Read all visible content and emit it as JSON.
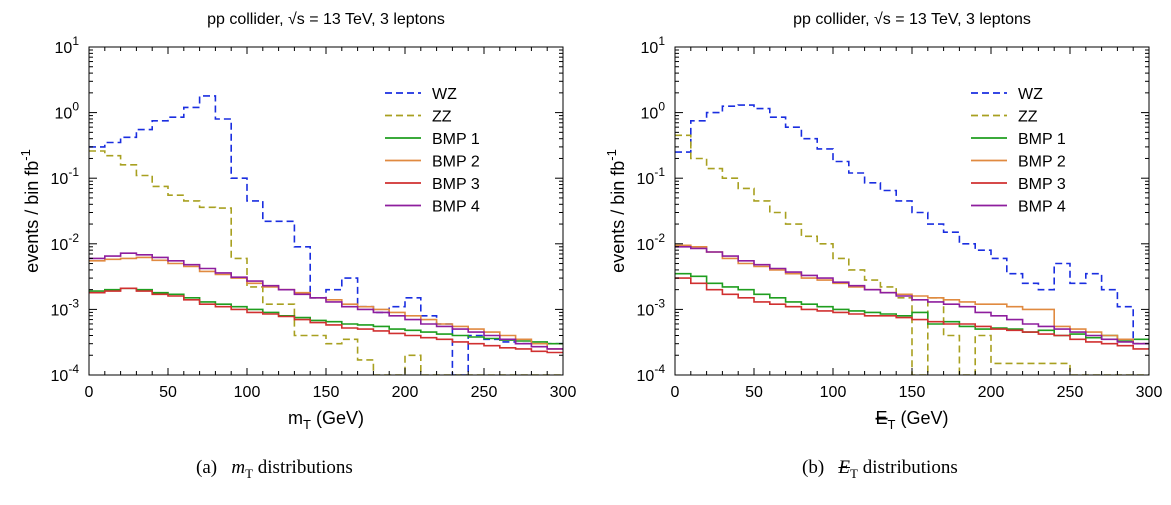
{
  "chart_data": [
    {
      "type": "line",
      "panel": "a",
      "title": "pp collider, √s = 13 TeV, 3 leptons",
      "xlabel": "m",
      "xlabel_sub": "T",
      "xlabel_unit": "(GeV)",
      "ylabel": "events / bin fb",
      "ylabel_sup": "-1",
      "xlim": [
        0,
        300
      ],
      "ylim_log10": [
        -4,
        1
      ],
      "y_scale": "log",
      "xticks": [
        0,
        50,
        100,
        150,
        200,
        250,
        300
      ],
      "ytick_base": "10",
      "ytick_exponents": [
        "-4",
        "-3",
        "-2",
        "-1",
        "0",
        "1"
      ],
      "legend_position": "top-right",
      "bin_width": 10,
      "series": [
        {
          "name": "WZ",
          "color": "#1a2ee0",
          "dash": true,
          "values": [
            0.3,
            0.35,
            0.42,
            0.55,
            0.75,
            0.85,
            1.2,
            1.8,
            0.8,
            0.1,
            0.045,
            0.022,
            0.022,
            0.009,
            0.0015,
            0.002,
            0.003,
            0.0011,
            0.0009,
            0.0011,
            0.0015,
            0.0008,
            0.0006,
            9e-05,
            0.0004,
            0.00035,
            0.00032,
            0.0003,
            0.0003,
            0.0003
          ]
        },
        {
          "name": "ZZ",
          "color": "#a8a020",
          "dash": true,
          "values": [
            0.26,
            0.22,
            0.16,
            0.11,
            0.075,
            0.055,
            0.045,
            0.036,
            0.035,
            0.006,
            0.0022,
            0.0012,
            0.0012,
            0.0004,
            0.0004,
            0.0003,
            0.00035,
            0.00017,
            9e-05,
            9e-05,
            0.0002,
            9e-05,
            9e-05,
            9e-05,
            9e-05,
            9e-05,
            9e-05,
            9e-05,
            9e-05,
            9e-05
          ]
        },
        {
          "name": "BMP 1",
          "color": "#1f9e1f",
          "dash": false,
          "values": [
            0.0019,
            0.002,
            0.0021,
            0.002,
            0.0018,
            0.0017,
            0.0015,
            0.0013,
            0.0012,
            0.0011,
            0.001,
            0.0009,
            0.0008,
            0.00075,
            0.00068,
            0.00065,
            0.0006,
            0.00058,
            0.00055,
            0.0005,
            0.00048,
            0.00045,
            0.00042,
            0.0004,
            0.00038,
            0.00036,
            0.00034,
            0.00033,
            0.00032,
            0.0003
          ]
        },
        {
          "name": "BMP 2",
          "color": "#e08a40",
          "dash": false,
          "values": [
            0.0055,
            0.0058,
            0.006,
            0.0062,
            0.0056,
            0.005,
            0.0045,
            0.0038,
            0.0034,
            0.003,
            0.0025,
            0.0022,
            0.002,
            0.0018,
            0.0015,
            0.0014,
            0.0012,
            0.0011,
            0.001,
            0.0009,
            0.0008,
            0.0007,
            0.0006,
            0.00055,
            0.0005,
            0.00045,
            0.0004,
            0.00035,
            0.0003,
            0.00025
          ]
        },
        {
          "name": "BMP 3",
          "color": "#d03030",
          "dash": false,
          "values": [
            0.0018,
            0.0019,
            0.0021,
            0.0019,
            0.0017,
            0.0016,
            0.0014,
            0.0012,
            0.0011,
            0.001,
            0.0009,
            0.00085,
            0.00078,
            0.0007,
            0.00063,
            0.00058,
            0.00052,
            0.0005,
            0.00047,
            0.00043,
            0.0004,
            0.00037,
            0.00035,
            0.00032,
            0.0003,
            0.00028,
            0.00026,
            0.00025,
            0.00023,
            0.00022
          ]
        },
        {
          "name": "BMP 4",
          "color": "#8e1e9e",
          "dash": false,
          "values": [
            0.006,
            0.0065,
            0.0072,
            0.0068,
            0.0062,
            0.0055,
            0.0048,
            0.0042,
            0.0036,
            0.0031,
            0.0027,
            0.0023,
            0.002,
            0.0017,
            0.0015,
            0.0013,
            0.0011,
            0.001,
            0.0009,
            0.0008,
            0.0007,
            0.0006,
            0.00055,
            0.0005,
            0.00045,
            0.0004,
            0.00035,
            0.0003,
            0.00027,
            0.00025
          ]
        }
      ]
    },
    {
      "type": "line",
      "panel": "b",
      "title": "pp collider, √s = 13 TeV, 3 leptons",
      "xlabel": "E",
      "xlabel_sub": "T",
      "xlabel_unit": "(GeV)",
      "ylabel": "events / bin fb",
      "ylabel_sup": "-1",
      "xlim": [
        0,
        300
      ],
      "ylim_log10": [
        -4,
        1
      ],
      "y_scale": "log",
      "xticks": [
        0,
        50,
        100,
        150,
        200,
        250,
        300
      ],
      "ytick_base": "10",
      "ytick_exponents": [
        "-4",
        "-3",
        "-2",
        "-1",
        "0",
        "1"
      ],
      "legend_position": "top-right",
      "bin_width": 10,
      "series": [
        {
          "name": "WZ",
          "color": "#1a2ee0",
          "dash": true,
          "values": [
            0.25,
            0.75,
            1.0,
            1.25,
            1.3,
            1.15,
            0.85,
            0.6,
            0.4,
            0.28,
            0.18,
            0.12,
            0.085,
            0.065,
            0.045,
            0.03,
            0.02,
            0.015,
            0.01,
            0.008,
            0.006,
            0.0035,
            0.0025,
            0.002,
            0.005,
            0.0025,
            0.0035,
            0.002,
            0.0011,
            0.0003
          ]
        },
        {
          "name": "ZZ",
          "color": "#a8a020",
          "dash": true,
          "values": [
            0.45,
            0.2,
            0.14,
            0.1,
            0.07,
            0.045,
            0.03,
            0.02,
            0.013,
            0.01,
            0.006,
            0.004,
            0.0028,
            0.0022,
            0.0015,
            9e-05,
            0.0015,
            0.0004,
            9e-05,
            0.0004,
            0.00015,
            0.00015,
            0.00015,
            0.00015,
            0.00015,
            9e-05,
            9e-05,
            9e-05,
            9e-05,
            9e-05
          ]
        },
        {
          "name": "BMP 1",
          "color": "#1f9e1f",
          "dash": false,
          "values": [
            0.0035,
            0.0032,
            0.0025,
            0.0022,
            0.002,
            0.0017,
            0.0015,
            0.0013,
            0.0012,
            0.0011,
            0.001,
            0.00095,
            0.0009,
            0.00085,
            0.0008,
            0.0009,
            0.0006,
            0.00065,
            0.00055,
            0.0005,
            0.00052,
            0.0005,
            0.00045,
            0.00048,
            0.0004,
            0.00042,
            0.00037,
            0.0004,
            0.00033,
            0.00035
          ]
        },
        {
          "name": "BMP 2",
          "color": "#e08a40",
          "dash": false,
          "values": [
            0.0095,
            0.009,
            0.0075,
            0.006,
            0.005,
            0.0045,
            0.004,
            0.0035,
            0.003,
            0.0028,
            0.0025,
            0.0022,
            0.002,
            0.0018,
            0.0017,
            0.0016,
            0.0015,
            0.0014,
            0.0013,
            0.0012,
            0.0012,
            0.0011,
            0.001,
            0.001,
            0.00055,
            0.0005,
            0.00045,
            0.0004,
            0.00035,
            0.0003
          ]
        },
        {
          "name": "BMP 3",
          "color": "#d03030",
          "dash": false,
          "values": [
            0.003,
            0.0025,
            0.002,
            0.0017,
            0.0015,
            0.0013,
            0.0012,
            0.0011,
            0.001,
            0.00095,
            0.0009,
            0.00085,
            0.0008,
            0.0008,
            0.00075,
            0.0007,
            0.00065,
            0.0006,
            0.0006,
            0.00055,
            0.0005,
            0.00048,
            0.00045,
            0.00042,
            0.0004,
            0.00035,
            0.00032,
            0.0003,
            0.00028,
            0.00025
          ]
        },
        {
          "name": "BMP 4",
          "color": "#8e1e9e",
          "dash": false,
          "values": [
            0.009,
            0.0085,
            0.0075,
            0.0065,
            0.0055,
            0.0048,
            0.0042,
            0.0037,
            0.0033,
            0.003,
            0.0026,
            0.0023,
            0.002,
            0.0018,
            0.0016,
            0.0014,
            0.0013,
            0.0012,
            0.0011,
            0.0009,
            0.0008,
            0.0007,
            0.0006,
            0.00055,
            0.0005,
            0.00045,
            0.0004,
            0.00035,
            0.00032,
            0.0003
          ]
        }
      ]
    }
  ],
  "captions": {
    "a_tag": "(a)",
    "a_var": "m",
    "a_sub": "T",
    "a_text": "distributions",
    "b_tag": "(b)",
    "b_var": "E",
    "b_sub": "T",
    "b_text": "distributions"
  }
}
